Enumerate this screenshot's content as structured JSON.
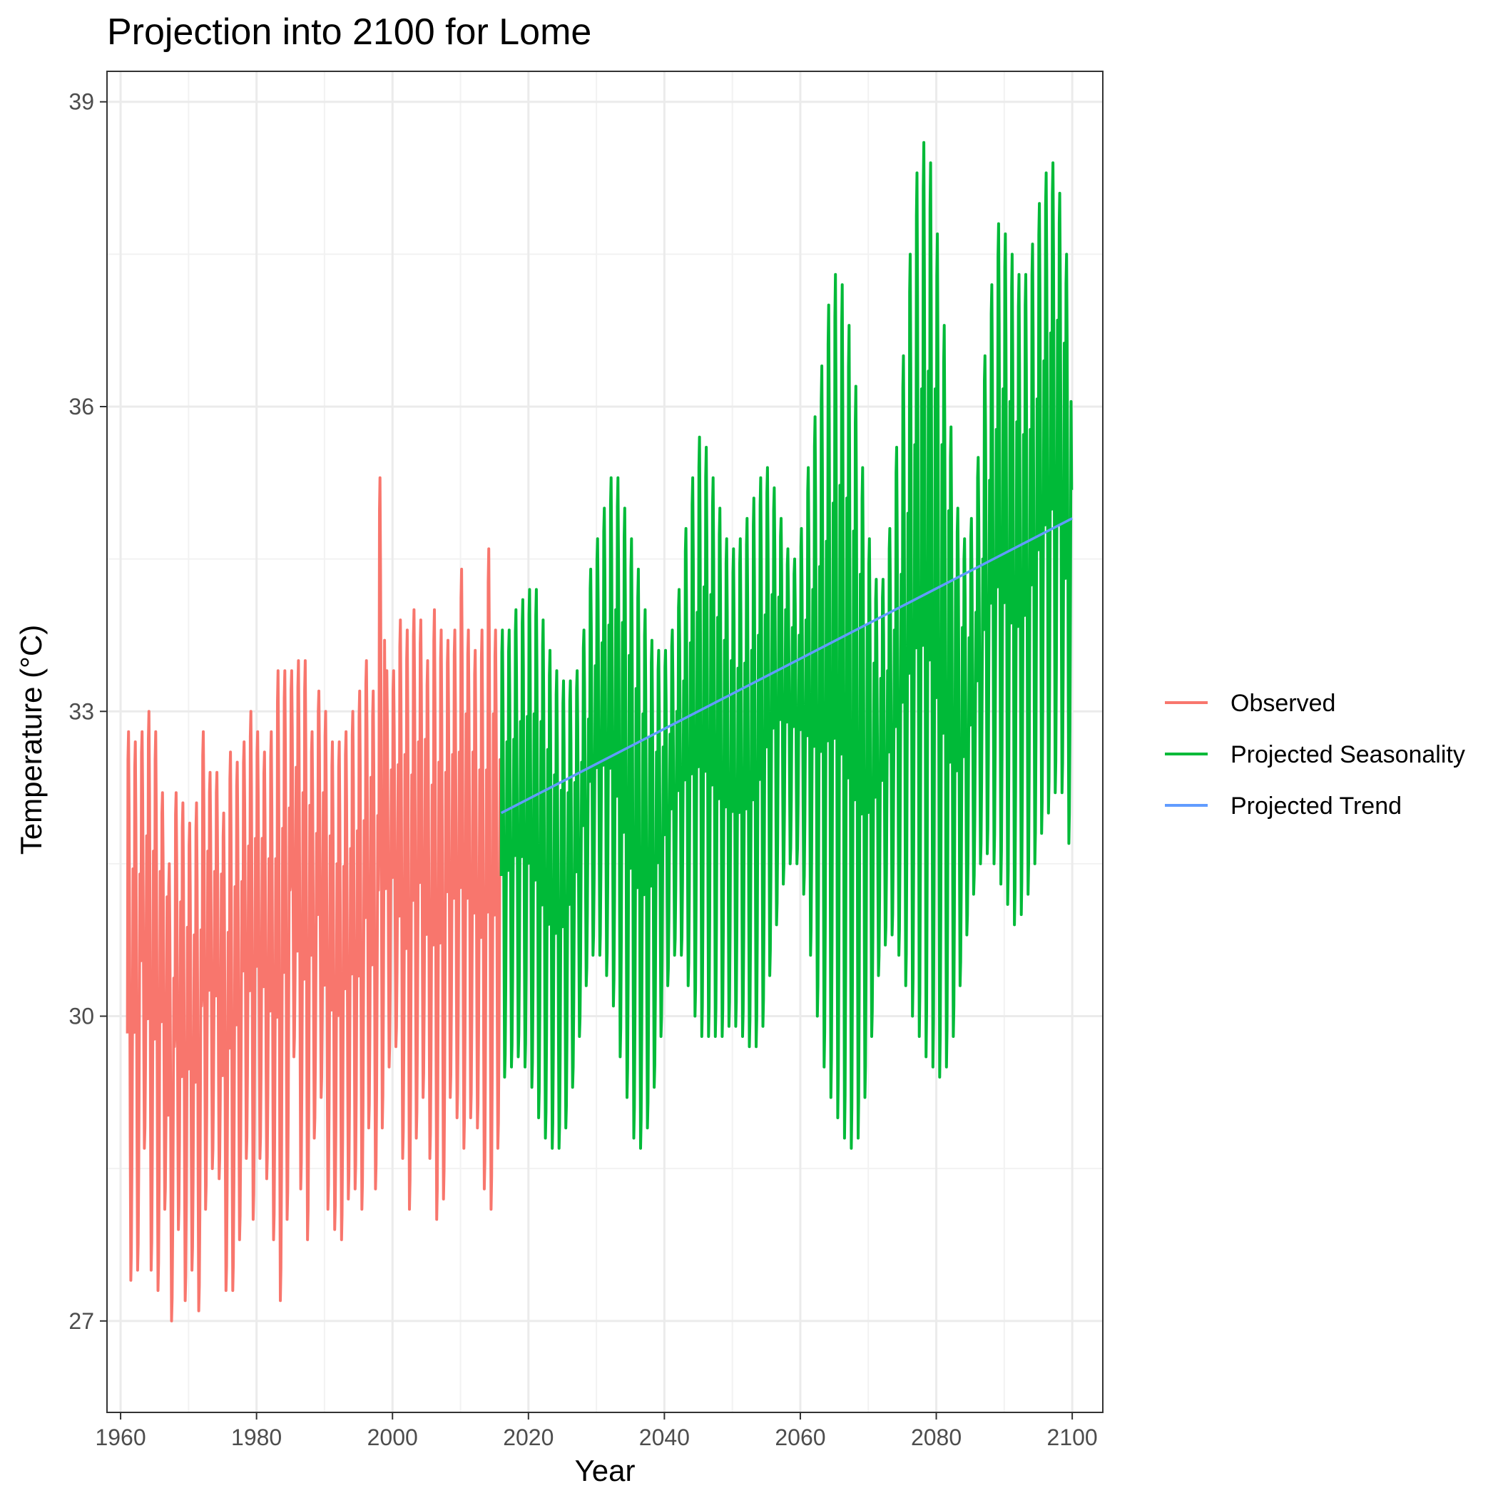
{
  "chart_data": {
    "type": "line",
    "title": "Projection into 2100 for Lome",
    "xlabel": "Year",
    "ylabel": "Temperature (°C)",
    "xlim": [
      1958,
      2104.5
    ],
    "ylim": [
      26.1,
      39.3
    ],
    "x_ticks": [
      1960,
      1980,
      2000,
      2020,
      2040,
      2060,
      2080,
      2100
    ],
    "x_tick_labels": [
      "1960",
      "1980",
      "2000",
      "2020",
      "2040",
      "2060",
      "2080",
      "2100"
    ],
    "y_ticks": [
      27,
      30,
      33,
      36,
      39
    ],
    "y_tick_labels": [
      "27",
      "30",
      "33",
      "36",
      "39"
    ],
    "grid": true,
    "legend_position": "right",
    "series": [
      {
        "name": "Observed",
        "color": "#F8766D",
        "x_start": 1961,
        "x_end": 2016,
        "points_per_year": 12,
        "annual_max": [
          32.8,
          32.7,
          32.8,
          33.0,
          32.8,
          32.2,
          31.5,
          32.2,
          32.1,
          31.9,
          32.1,
          32.8,
          32.4,
          32.4,
          32.0,
          32.6,
          32.5,
          32.7,
          33.0,
          32.8,
          32.6,
          32.8,
          33.4,
          33.4,
          33.4,
          33.5,
          33.5,
          32.8,
          33.2,
          33.0,
          32.7,
          32.7,
          32.8,
          33.0,
          33.2,
          33.5,
          33.2,
          35.3,
          33.4,
          33.4,
          33.9,
          33.8,
          34.0,
          33.9,
          33.5,
          34.0,
          33.8,
          33.7,
          33.8,
          34.4,
          33.8,
          33.6,
          33.8,
          34.6,
          33.8,
          33.9
        ],
        "annual_min": [
          27.4,
          27.5,
          28.7,
          27.5,
          27.3,
          28.1,
          27.0,
          27.9,
          27.2,
          27.5,
          27.1,
          28.1,
          28.5,
          28.4,
          27.3,
          27.3,
          27.8,
          28.6,
          28.0,
          28.6,
          28.4,
          27.8,
          27.2,
          28.0,
          29.6,
          28.3,
          27.8,
          28.8,
          29.2,
          28.1,
          27.9,
          27.8,
          28.2,
          28.3,
          28.1,
          28.9,
          28.3,
          28.9,
          29.5,
          29.7,
          28.6,
          28.1,
          28.8,
          29.2,
          28.6,
          28.0,
          28.2,
          29.2,
          29.0,
          28.7,
          29.0,
          28.9,
          28.3,
          28.1,
          28.7,
          29.8
        ]
      },
      {
        "name": "Projected Seasonality",
        "color": "#00BA38",
        "x_start": 2016,
        "x_end": 2100,
        "points_per_year": 12,
        "annual_max": [
          33.8,
          33.8,
          34.0,
          34.1,
          34.2,
          34.2,
          33.9,
          33.6,
          33.4,
          33.3,
          33.3,
          33.4,
          33.8,
          34.4,
          34.7,
          35.0,
          35.3,
          35.3,
          35.0,
          34.7,
          34.4,
          34.0,
          33.7,
          33.6,
          33.6,
          33.8,
          34.2,
          34.8,
          35.3,
          35.7,
          35.6,
          35.3,
          35.0,
          34.7,
          34.6,
          34.7,
          34.9,
          35.1,
          35.3,
          35.4,
          35.2,
          34.9,
          34.6,
          34.5,
          34.8,
          35.4,
          35.9,
          36.4,
          37.0,
          37.3,
          37.2,
          36.8,
          36.2,
          35.4,
          34.7,
          34.3,
          34.3,
          34.8,
          35.6,
          36.5,
          37.5,
          38.3,
          38.6,
          38.4,
          37.7,
          36.8,
          35.8,
          35.0,
          34.7,
          34.9,
          35.5,
          36.5,
          37.2,
          37.8,
          37.7,
          37.5,
          37.3,
          37.3,
          37.6,
          38.0,
          38.3,
          38.4,
          38.1,
          37.5
        ],
        "annual_min": [
          29.4,
          29.5,
          29.6,
          29.5,
          29.3,
          29.0,
          28.8,
          28.7,
          28.7,
          28.9,
          29.3,
          29.8,
          30.3,
          30.6,
          30.6,
          30.4,
          30.1,
          29.6,
          29.2,
          28.8,
          28.7,
          28.9,
          29.3,
          29.8,
          30.3,
          30.6,
          30.6,
          30.3,
          30.0,
          29.8,
          29.8,
          29.8,
          29.8,
          29.9,
          29.9,
          29.8,
          29.7,
          29.7,
          29.9,
          30.4,
          30.9,
          31.3,
          31.5,
          31.5,
          31.2,
          30.6,
          30.0,
          29.5,
          29.2,
          29.0,
          28.8,
          28.7,
          28.8,
          29.2,
          29.8,
          30.4,
          30.7,
          30.8,
          30.6,
          30.3,
          30.0,
          29.8,
          29.6,
          29.5,
          29.4,
          29.5,
          29.8,
          30.3,
          30.8,
          31.2,
          31.5,
          31.6,
          31.5,
          31.3,
          31.1,
          30.9,
          31.0,
          31.2,
          31.5,
          31.8,
          32.0,
          32.2,
          32.2,
          31.7
        ]
      },
      {
        "name": "Projected Trend",
        "color": "#619CFF",
        "x": [
          2016,
          2100
        ],
        "y": [
          32.0,
          34.9
        ]
      }
    ]
  }
}
